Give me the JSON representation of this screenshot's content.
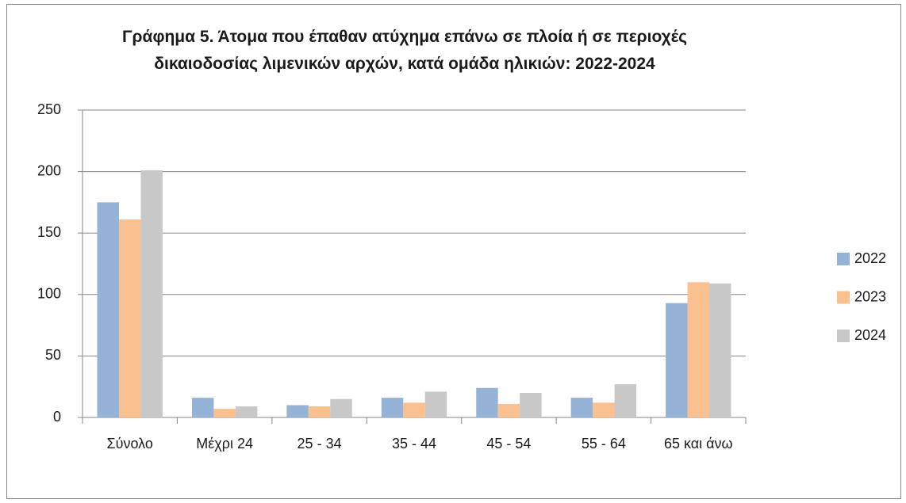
{
  "chart_data": {
    "type": "bar",
    "title": "Γράφημα 5. Άτομα που έπαθαν ατύχημα επάνω σε πλοία ή σε περιοχές δικαιοδοσίας λιμενικών αρχών, κατά ομάδα ηλικιών: 2022-2024",
    "categories": [
      "Σύνολο",
      "Μέχρι 24",
      "25 - 34",
      "35 - 44",
      "45 - 54",
      "55 - 64",
      "65 και άνω"
    ],
    "series": [
      {
        "name": "2022",
        "color": "#95b3d7",
        "values": [
          175,
          16,
          10,
          16,
          24,
          16,
          93
        ]
      },
      {
        "name": "2023",
        "color": "#fac090",
        "values": [
          161,
          7,
          9,
          12,
          11,
          12,
          110
        ]
      },
      {
        "name": "2024",
        "color": "#c8c8c8",
        "values": [
          201,
          9,
          15,
          21,
          20,
          27,
          109
        ]
      }
    ],
    "ylim": [
      0,
      250
    ],
    "yticks": [
      0,
      50,
      100,
      150,
      200,
      250
    ],
    "grid": true,
    "legend": "right"
  }
}
